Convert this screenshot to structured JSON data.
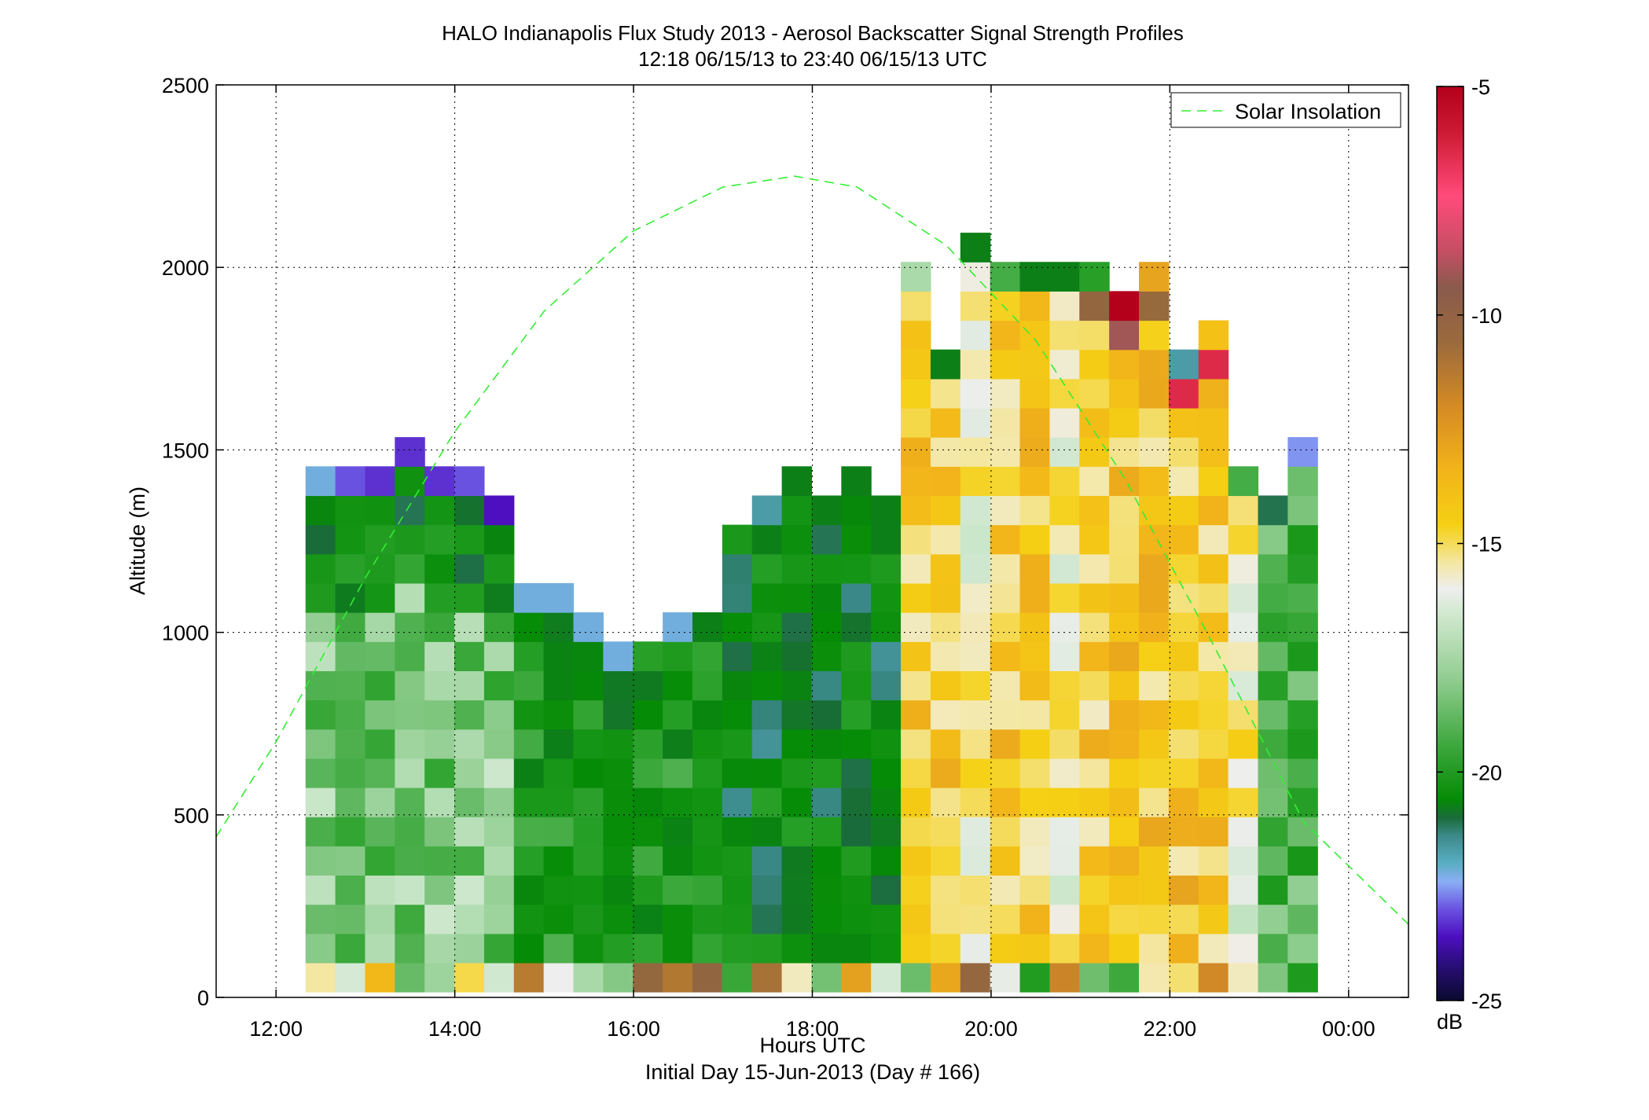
{
  "chart_data": {
    "type": "heatmap",
    "title": "HALO Indianapolis Flux Study 2013 - Aerosol Backscatter Signal Strength Profiles",
    "subtitle": "12:18 06/15/13 to 23:40 06/15/13  UTC",
    "xlabel": "Hours UTC",
    "xlabel2": "Initial Day 15-Jun-2013 (Day # 166)",
    "ylabel": "Altitude (m)",
    "xlim_hours": [
      11.33,
      24.67
    ],
    "ylim": [
      0,
      2500
    ],
    "x_ticks": [
      12,
      14,
      16,
      18,
      20,
      22,
      24
    ],
    "x_tick_labels": [
      "12:00",
      "14:00",
      "16:00",
      "18:00",
      "20:00",
      "22:00",
      "00:00"
    ],
    "y_ticks": [
      0,
      500,
      1000,
      1500,
      2000,
      2500
    ],
    "y_tick_labels": [
      "0",
      "500",
      "1000",
      "1500",
      "2000",
      "2500"
    ],
    "grid": true,
    "colorbar": {
      "label": "dB",
      "range": [
        -25,
        -5
      ],
      "ticks": [
        -5,
        -10,
        -15,
        -20,
        -25
      ],
      "tick_labels": [
        "-5",
        "-10",
        "-15",
        "-20",
        "-25"
      ]
    },
    "legend": {
      "position": "top-right",
      "entries": [
        {
          "name": "Solar Insolation",
          "style": "dashed",
          "color": "#33ee33"
        }
      ]
    },
    "solar_insolation_curve": {
      "x_hours": [
        11.33,
        12,
        13,
        14,
        15,
        16,
        17,
        17.8,
        18.5,
        19.5,
        20.5,
        21.5,
        22.5,
        23.5,
        24.67
      ],
      "y_altitude": [
        440,
        700,
        1150,
        1550,
        1880,
        2100,
        2220,
        2250,
        2220,
        2060,
        1800,
        1420,
        960,
        480,
        200
      ]
    },
    "profiles": {
      "time_start_hours": 12.33,
      "time_step_hours": 0.333,
      "altitude_bin_m": 80,
      "first_bin_center_m": 55,
      "columns": [
        {
          "top": 1490,
          "top_db": -21
        },
        {
          "top": 1490,
          "top_db": -22
        },
        {
          "top": 1490,
          "top_db": -22.5
        },
        {
          "top": 1610,
          "top_db": -22.5
        },
        {
          "top": 1490,
          "top_db": -22.5
        },
        {
          "top": 1460,
          "top_db": -22
        },
        {
          "top": 1410,
          "top_db": -23
        },
        {
          "top": 1180,
          "top_db": -21
        },
        {
          "top": 1180,
          "top_db": -21
        },
        {
          "top": 1070,
          "top_db": -21
        },
        {
          "top": 990,
          "top_db": -21
        },
        {
          "top": 1030,
          "top_db": -18
        },
        {
          "top": 1070,
          "top_db": -21
        },
        {
          "top": 1110,
          "top_db": -19.5
        },
        {
          "top": 1330,
          "top_db": -18.5
        },
        {
          "top": 1410,
          "top_db": -20.5
        },
        {
          "top": 1490,
          "top_db": -19.5
        },
        {
          "top": 1450,
          "top_db": -19.5
        },
        {
          "top": 1490,
          "top_db": -19.5
        },
        {
          "top": 1450,
          "top_db": -19.5
        },
        {
          "top": 2070,
          "top_db": -16
        },
        {
          "top": 1780,
          "top_db": -19.5
        },
        {
          "top": 2150,
          "top_db": -19.5
        },
        {
          "top": 2070,
          "top_db": -17.5
        },
        {
          "top": 2030,
          "top_db": -19.5
        },
        {
          "top": 2030,
          "top_db": -19.5
        },
        {
          "top": 2070,
          "top_db": -18
        },
        {
          "top": 1990,
          "top_db": -5
        },
        {
          "top": 2030,
          "top_db": -12
        },
        {
          "top": 1830,
          "top_db": -20.5
        },
        {
          "top": 1870,
          "top_db": -13
        },
        {
          "top": 1530,
          "top_db": -17.5
        },
        {
          "top": 1450,
          "top_db": -20
        },
        {
          "top": 1570,
          "top_db": -21.5
        }
      ]
    }
  }
}
